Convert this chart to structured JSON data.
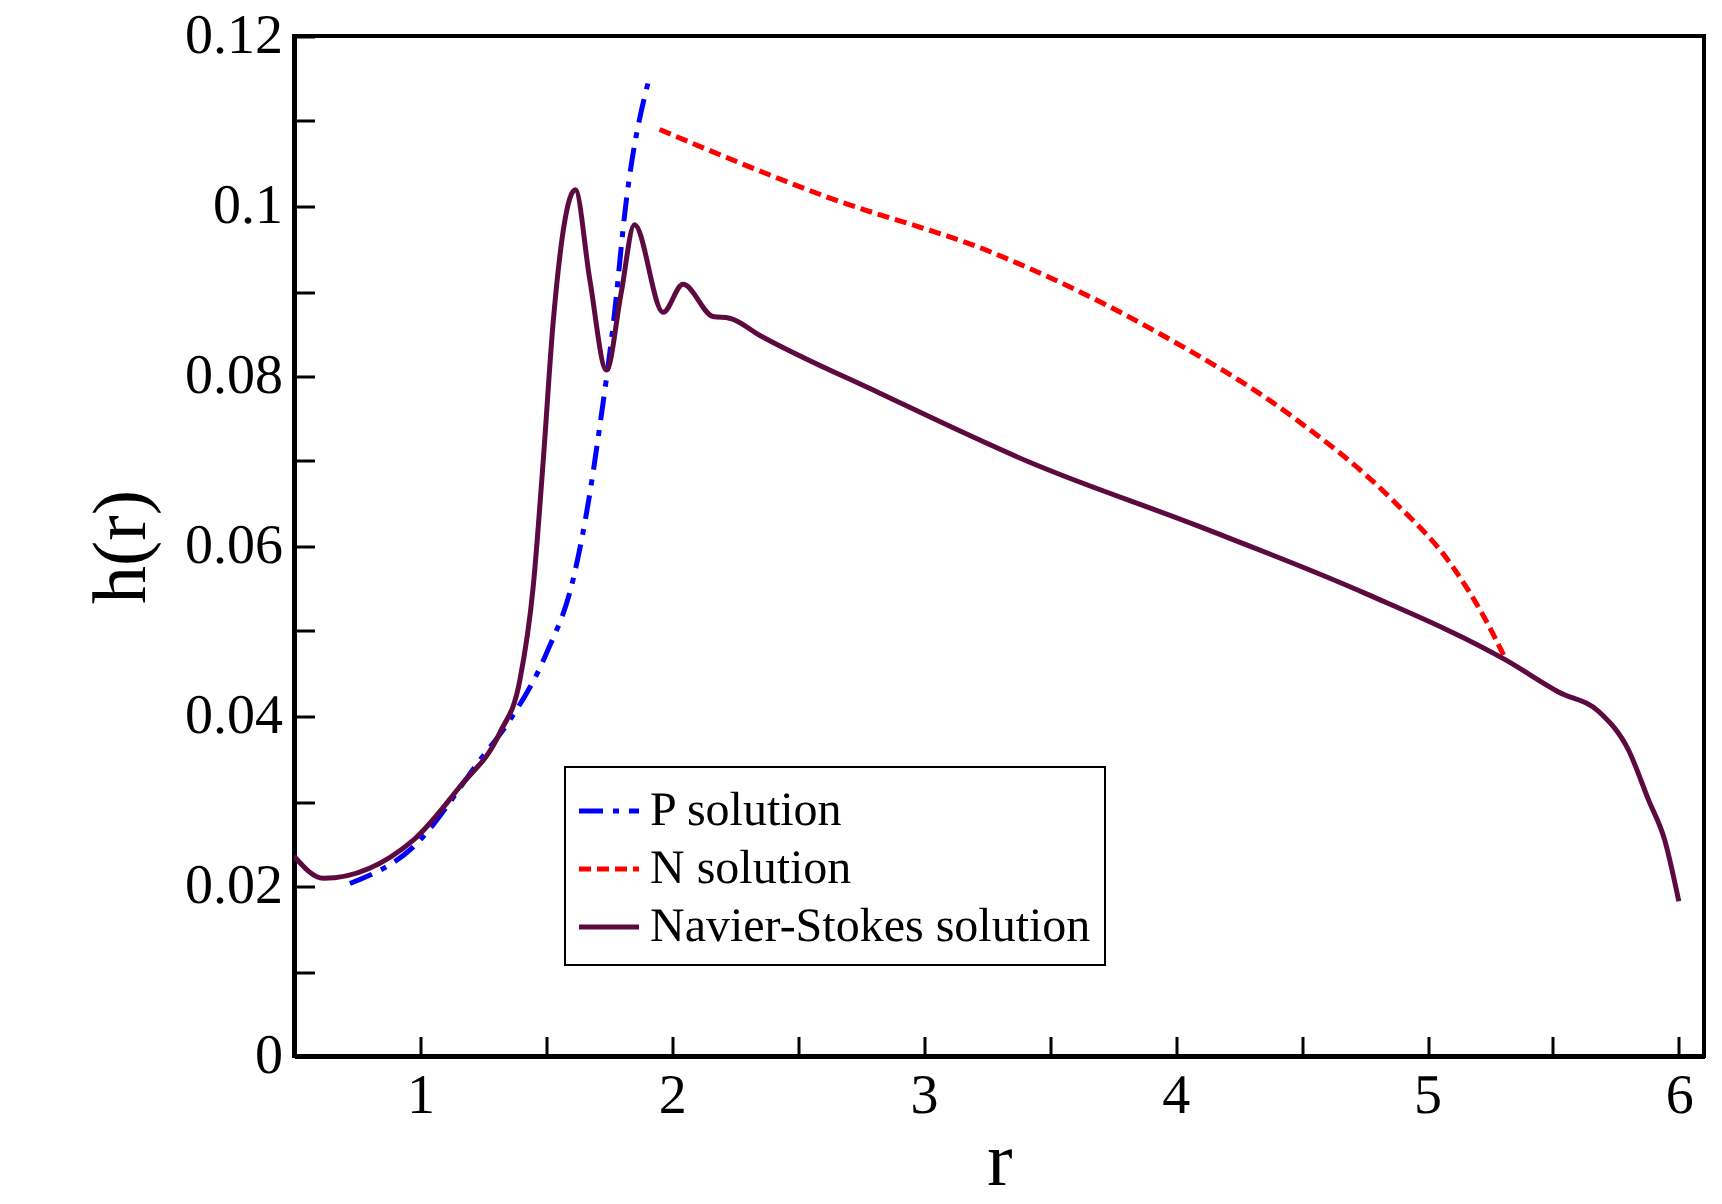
{
  "chart_data": {
    "type": "line",
    "xlabel": "r",
    "ylabel": "h(r)",
    "xlim": [
      0.5,
      6.1
    ],
    "ylim": [
      0,
      0.12
    ],
    "xticks": [
      {
        "value": 0.5,
        "label": null
      },
      1,
      {
        "value": 1.5,
        "label": null
      },
      2,
      {
        "value": 2.5,
        "label": null
      },
      3,
      {
        "value": 3.5,
        "label": null
      },
      4,
      {
        "value": 4.5,
        "label": null
      },
      5,
      {
        "value": 5.5,
        "label": null
      },
      6
    ],
    "yticks": [
      0,
      {
        "value": 0.01,
        "label": null
      },
      0.02,
      {
        "value": 0.03,
        "label": null
      },
      0.04,
      {
        "value": 0.05,
        "label": null
      },
      0.06,
      {
        "value": 0.07,
        "label": null
      },
      0.08,
      {
        "value": 0.09,
        "label": null
      },
      0.1,
      {
        "value": 0.11,
        "label": null
      },
      0.12
    ],
    "grid": false,
    "legend": "bottom left",
    "marker": "none",
    "series": [
      {
        "name": "P solution",
        "color": "#0000ff",
        "line_style": "dashdot",
        "x": [
          0.722,
          0.974,
          1.238,
          1.357,
          1.503,
          1.608,
          1.675,
          1.714,
          1.767,
          1.82,
          1.913
        ],
        "values": [
          0.0203,
          0.0246,
          0.0348,
          0.0395,
          0.0474,
          0.056,
          0.0662,
          0.074,
          0.0858,
          0.1007,
          0.1153
        ]
      },
      {
        "name": "N solution",
        "color": "#ff0000",
        "line_style": "dashed",
        "x": [
          1.952,
          2.613,
          3.275,
          3.937,
          4.466,
          4.863,
          5.101,
          5.233,
          5.307
        ],
        "values": [
          0.109,
          0.1011,
          0.0945,
          0.085,
          0.0752,
          0.0654,
          0.0576,
          0.0513,
          0.047
        ]
      },
      {
        "name": "Navier-Stokes solution",
        "color": "#5c0a40",
        "line_style": "solid",
        "x": [
          0.5,
          0.617,
          0.974,
          1.159,
          1.317,
          1.397,
          1.45,
          1.49,
          1.529,
          1.617,
          1.675,
          1.741,
          1.799,
          1.852,
          1.966,
          2.045,
          2.164,
          2.23,
          2.349,
          2.825,
          3.434,
          4.095,
          4.757,
          5.312,
          5.524,
          5.683,
          5.8,
          5.88,
          5.944,
          6.0
        ],
        "values": [
          0.0235,
          0.0209,
          0.0254,
          0.0317,
          0.038,
          0.0442,
          0.0552,
          0.0701,
          0.0862,
          0.1019,
          0.0913,
          0.0807,
          0.0897,
          0.0978,
          0.0875,
          0.0908,
          0.087,
          0.0868,
          0.0848,
          0.078,
          0.0697,
          0.0623,
          0.0544,
          0.0466,
          0.0428,
          0.0405,
          0.036,
          0.0301,
          0.0254,
          0.0182
        ]
      }
    ]
  }
}
